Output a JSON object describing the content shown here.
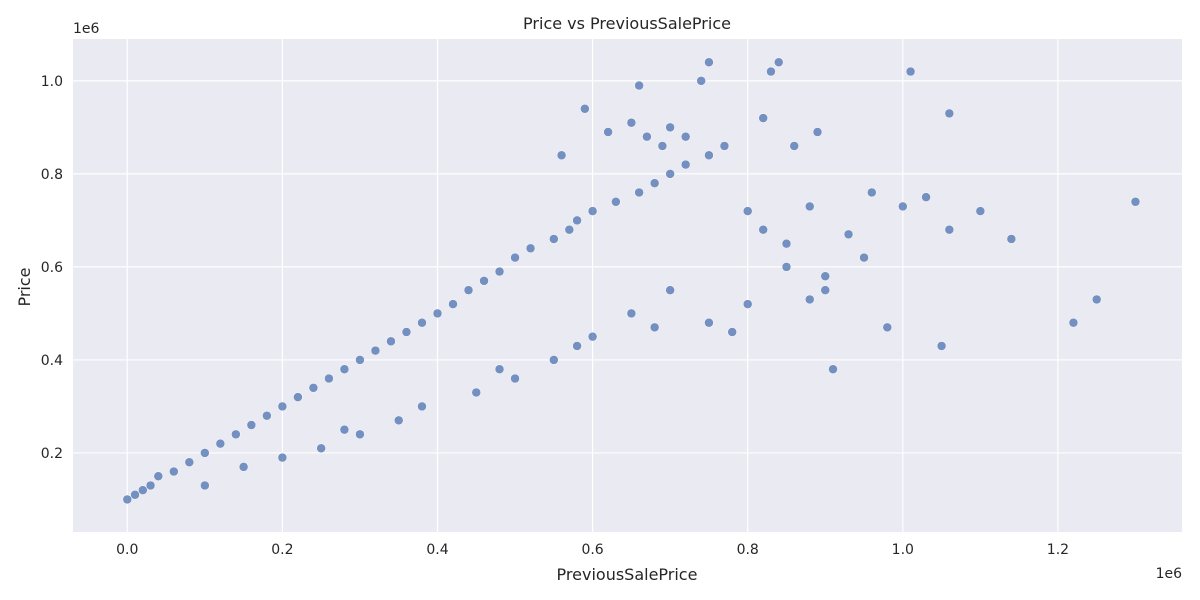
{
  "chart_data": {
    "type": "scatter",
    "title": "Price vs PreviousSalePrice",
    "xlabel": "PreviousSalePrice",
    "ylabel": "Price",
    "x_offset_text": "1e6",
    "y_offset_text": "1e6",
    "xlim": [
      -0.07,
      1.36
    ],
    "ylim": [
      0.03,
      1.09
    ],
    "x_ticks": [
      0.0,
      0.2,
      0.4,
      0.6,
      0.8,
      1.0,
      1.2
    ],
    "x_tick_labels": [
      "0.0",
      "0.2",
      "0.4",
      "0.6",
      "0.8",
      "1.0",
      "1.2"
    ],
    "y_ticks": [
      0.2,
      0.4,
      0.6,
      0.8,
      1.0
    ],
    "y_tick_labels": [
      "0.2",
      "0.4",
      "0.6",
      "0.8",
      "1.0"
    ],
    "grid": true,
    "colors": {
      "background": "#eaeaf2",
      "marker": "#4c72b0",
      "grid": "#ffffff"
    },
    "series": [
      {
        "x": [
          0.0,
          0.01,
          0.02,
          0.03,
          0.04,
          0.06,
          0.08,
          0.1,
          0.12,
          0.14,
          0.16,
          0.18,
          0.2,
          0.22,
          0.24,
          0.26,
          0.28,
          0.3,
          0.32,
          0.34,
          0.36,
          0.38,
          0.4,
          0.42,
          0.44,
          0.46,
          0.48,
          0.5,
          0.52,
          0.55,
          0.57,
          0.58,
          0.6,
          0.63,
          0.66,
          0.68,
          0.7,
          0.72,
          0.75,
          0.77,
          0.8,
          0.82,
          0.85,
          0.88,
          0.9,
          0.93,
          0.96,
          1.0,
          1.03,
          1.06,
          0.1,
          0.15,
          0.25,
          0.3,
          0.35,
          0.45,
          0.5,
          0.55,
          0.6,
          0.65,
          0.7,
          0.75,
          0.8,
          0.85,
          0.9,
          0.95,
          0.2,
          0.28,
          0.38,
          0.48,
          0.58,
          0.68,
          0.78,
          0.88,
          0.98,
          1.1,
          1.14,
          1.22,
          1.25,
          1.3,
          0.59,
          0.66,
          0.74,
          0.75,
          0.84,
          0.83,
          1.01,
          1.06,
          0.89,
          0.82,
          0.86,
          0.7,
          0.65,
          0.67,
          0.72,
          0.69,
          0.62,
          0.56,
          1.05,
          0.91
        ],
        "y": [
          0.1,
          0.11,
          0.12,
          0.13,
          0.15,
          0.16,
          0.18,
          0.2,
          0.22,
          0.24,
          0.26,
          0.28,
          0.3,
          0.32,
          0.34,
          0.36,
          0.38,
          0.4,
          0.42,
          0.44,
          0.46,
          0.48,
          0.5,
          0.52,
          0.55,
          0.57,
          0.59,
          0.62,
          0.64,
          0.66,
          0.68,
          0.7,
          0.72,
          0.74,
          0.76,
          0.78,
          0.8,
          0.82,
          0.84,
          0.86,
          0.72,
          0.68,
          0.65,
          0.73,
          0.55,
          0.67,
          0.76,
          0.73,
          0.75,
          0.68,
          0.13,
          0.17,
          0.21,
          0.24,
          0.27,
          0.33,
          0.36,
          0.4,
          0.45,
          0.5,
          0.55,
          0.48,
          0.52,
          0.6,
          0.58,
          0.62,
          0.19,
          0.25,
          0.3,
          0.38,
          0.43,
          0.47,
          0.46,
          0.53,
          0.47,
          0.72,
          0.66,
          0.48,
          0.53,
          0.74,
          0.94,
          0.99,
          1.0,
          1.04,
          1.04,
          1.02,
          1.02,
          0.93,
          0.89,
          0.92,
          0.86,
          0.9,
          0.91,
          0.88,
          0.88,
          0.86,
          0.89,
          0.84,
          0.43,
          0.38
        ]
      }
    ]
  }
}
